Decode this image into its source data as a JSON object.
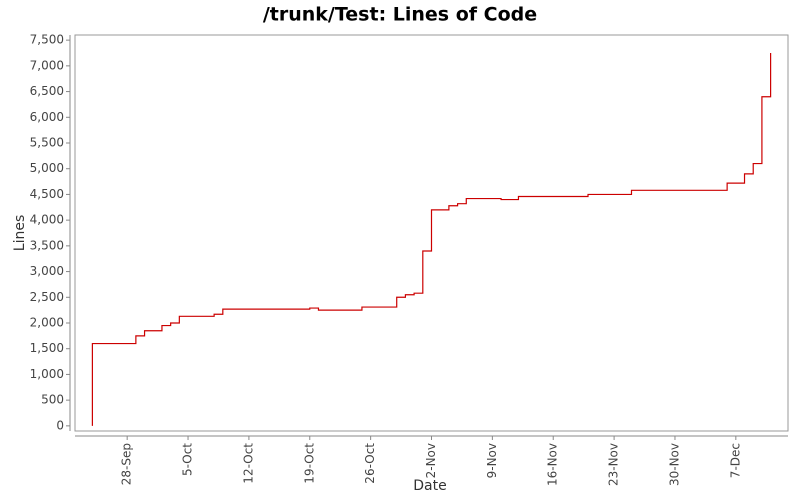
{
  "chart_data": {
    "type": "step-line",
    "title": "/trunk/Test: Lines of Code",
    "x_label": "Date",
    "y_label": "Lines",
    "xlim": [
      "22-Sep",
      "13-Dec"
    ],
    "xticks": [
      "28-Sep",
      "5-Oct",
      "12-Oct",
      "19-Oct",
      "26-Oct",
      "2-Nov",
      "9-Nov",
      "16-Nov",
      "23-Nov",
      "30-Nov",
      "7-Dec"
    ],
    "ylim": [
      -100,
      7600
    ],
    "yticks": [
      0,
      {
        "value": 500,
        "label": "500"
      },
      {
        "value": 1000,
        "label": "1,000"
      },
      {
        "value": 1500,
        "label": "1,500"
      },
      {
        "value": 2000,
        "label": "2,000"
      },
      {
        "value": 2500,
        "label": "2,500"
      },
      {
        "value": 3000,
        "label": "3,000"
      },
      {
        "value": 3500,
        "label": "3,500"
      },
      {
        "value": 4000,
        "label": "4,000"
      },
      {
        "value": 4500,
        "label": "4,500"
      },
      {
        "value": 5000,
        "label": "5,000"
      },
      {
        "value": 5500,
        "label": "5,500"
      },
      {
        "value": 6000,
        "label": "6,000"
      },
      {
        "value": 6500,
        "label": "6,500"
      },
      {
        "value": 7000,
        "label": "7,000"
      },
      {
        "value": 7500,
        "label": "7,500"
      }
    ],
    "color": "#cc0000",
    "x": [
      "24-Sep",
      "24-Sep",
      "29-Sep",
      "30-Sep",
      "2-Oct",
      "3-Oct",
      "4-Oct",
      "8-Oct",
      "9-Oct",
      "19-Oct",
      "20-Oct",
      "25-Oct",
      "29-Oct",
      "30-Oct",
      "31-Oct",
      "1-Nov",
      "2-Nov",
      "4-Nov",
      "5-Nov",
      "6-Nov",
      "10-Nov",
      "12-Nov",
      "20-Nov",
      "25-Nov",
      "6-Dec",
      "8-Dec",
      "9-Dec",
      "10-Dec",
      "11-Dec"
    ],
    "values": [
      0,
      1600,
      1750,
      1850,
      1950,
      2000,
      2130,
      2170,
      2270,
      2290,
      2250,
      2310,
      2500,
      2550,
      2580,
      3400,
      4200,
      4280,
      4320,
      4420,
      4400,
      4460,
      4500,
      4580,
      4720,
      4900,
      5100,
      6400,
      7250
    ]
  }
}
